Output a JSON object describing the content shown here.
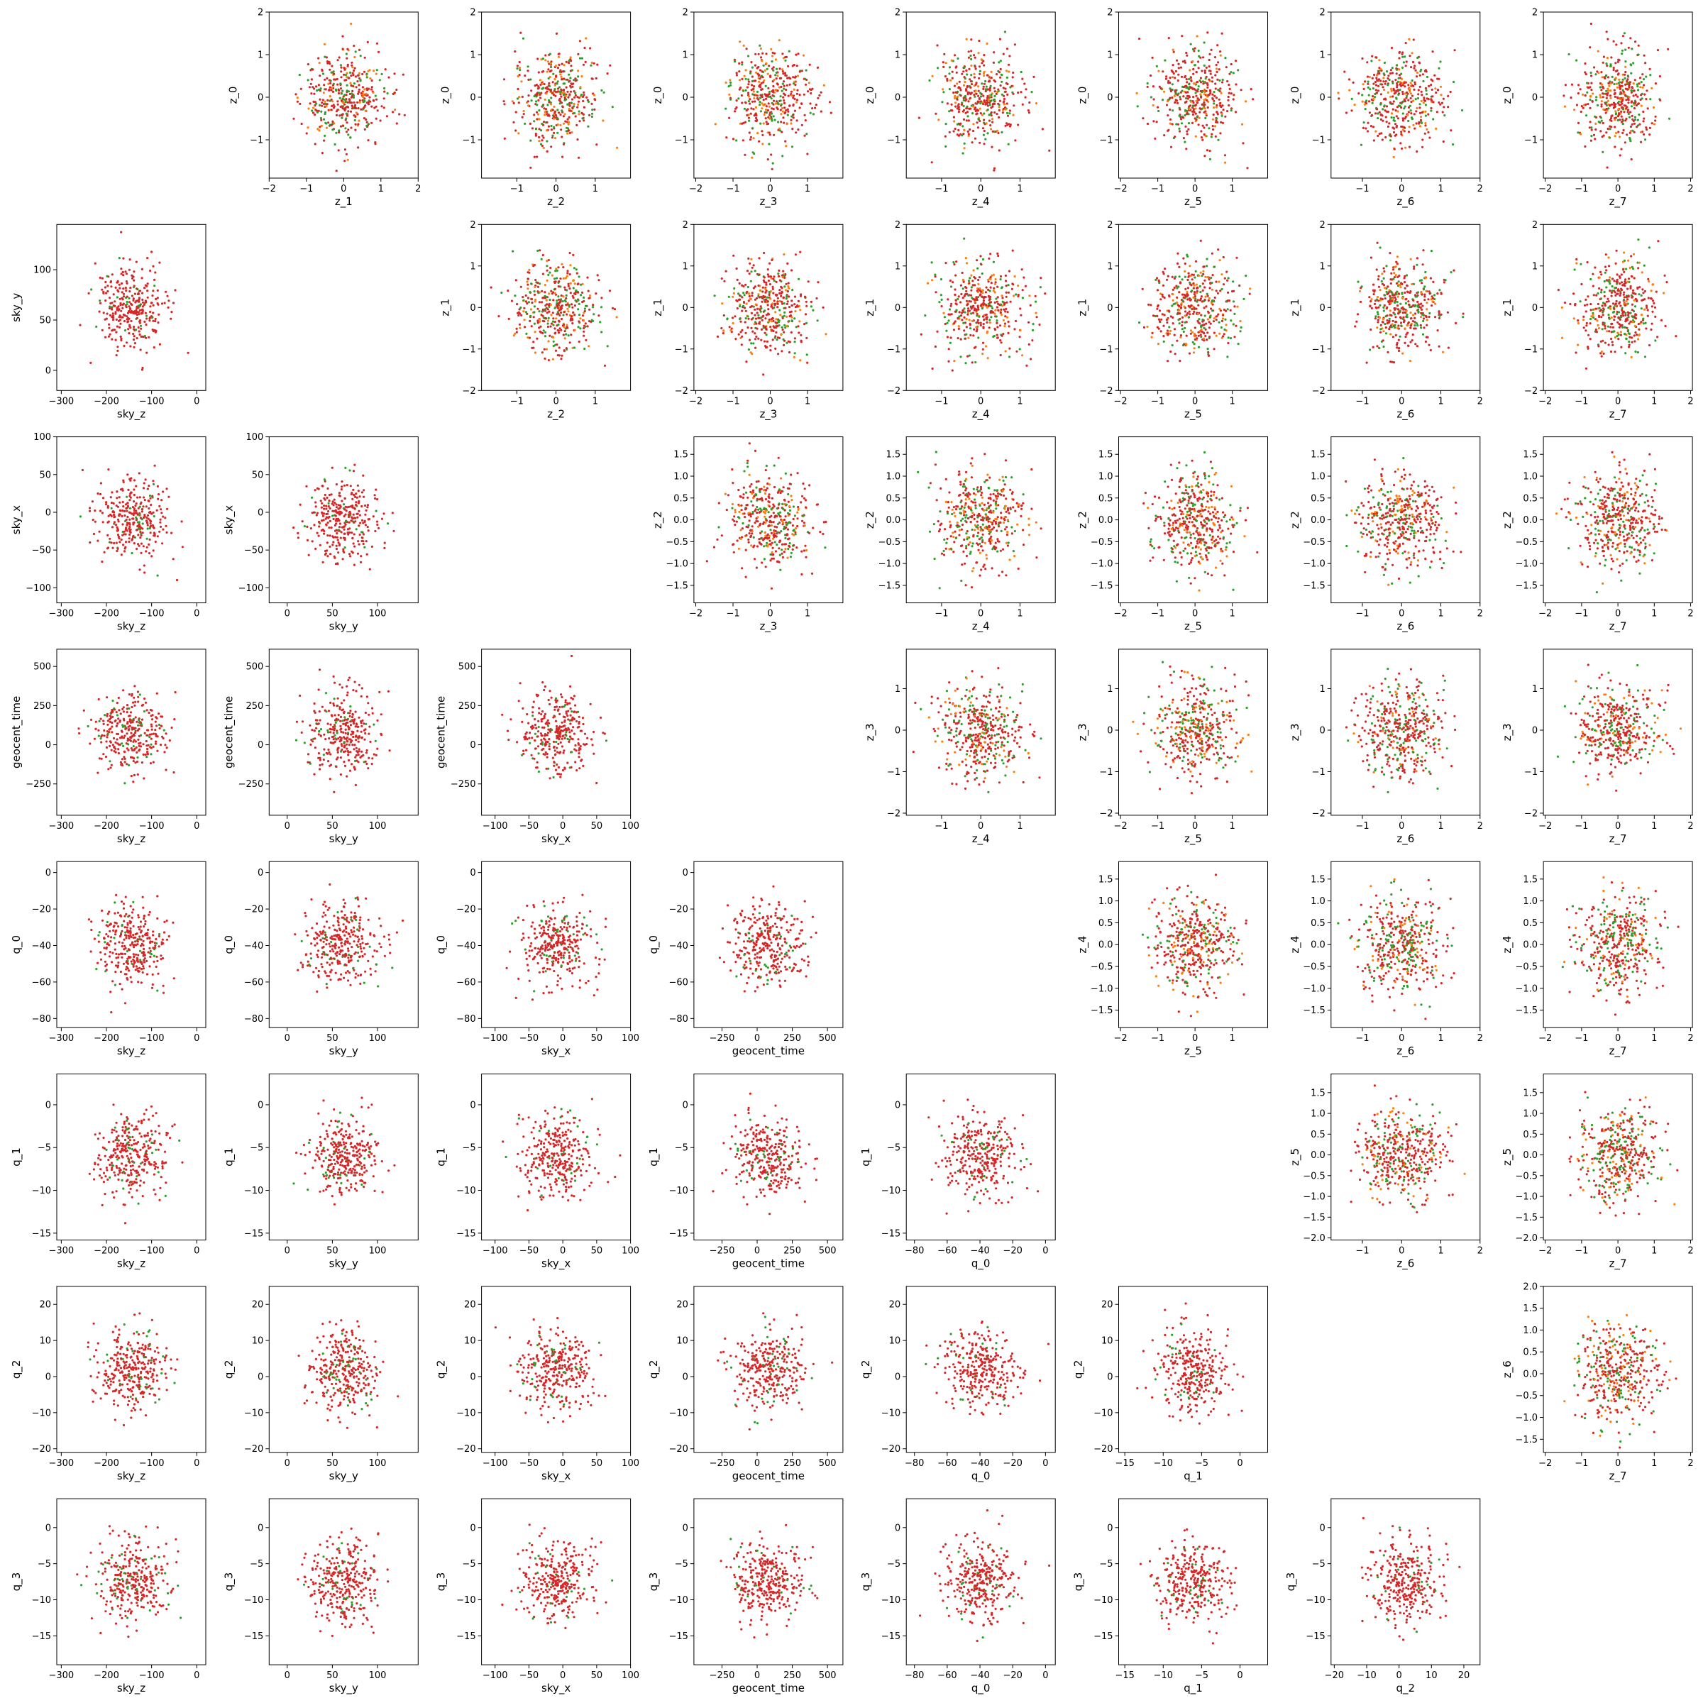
{
  "chart_data": {
    "type": "scatter",
    "layout": "corner-pair-grid",
    "rows": 8,
    "columns": 8,
    "point_colors": [
      "#d62728",
      "#2ca02c",
      "#ff7f0e"
    ],
    "grid": false,
    "legend": "none",
    "ranges": {
      "z_0": [
        -1.9,
        2.0
      ],
      "z_1": [
        -2.0,
        2.0
      ],
      "z_2": [
        -1.9,
        1.9
      ],
      "z_3": [
        -2.05,
        1.95
      ],
      "z_4": [
        -1.9,
        1.9
      ],
      "z_5": [
        -2.05,
        1.95
      ],
      "z_6": [
        -1.8,
        2.0
      ],
      "z_7": [
        -2.05,
        2.05
      ],
      "sky_z": [
        -310,
        20
      ],
      "sky_y": [
        -20,
        145
      ],
      "sky_x": [
        -120,
        100
      ],
      "geocent_time": [
        -450,
        610
      ],
      "q_0": [
        -85,
        6
      ],
      "q_1": [
        -15.8,
        3.6
      ],
      "q_2": [
        -21,
        25
      ],
      "q_3": [
        -19,
        4
      ]
    },
    "ticks": {
      "z_0": [
        -1,
        0,
        1,
        2
      ],
      "z_1": [
        -2,
        -1,
        0,
        1,
        2
      ],
      "z_2": [
        -1,
        0,
        1
      ],
      "z_3": [
        -2,
        -1,
        0,
        1
      ],
      "z_4": [
        -1,
        0,
        1
      ],
      "z_5": [
        -2,
        -1,
        0,
        1
      ],
      "z_6": [
        -1,
        0,
        1,
        2
      ],
      "z_7": [
        -2,
        -1,
        0,
        1,
        2
      ],
      "sky_z": [
        -300,
        -200,
        -100,
        0
      ],
      "sky_y": [
        0,
        50,
        100
      ],
      "sky_x": [
        -100,
        -50,
        0,
        50,
        100
      ],
      "geocent_time": [
        -250,
        0,
        250,
        500
      ],
      "q_0": [
        -80,
        -60,
        -40,
        -20,
        0
      ],
      "q_1": [
        -15,
        -10,
        -5,
        0
      ],
      "q_2": [
        -20,
        -10,
        0,
        10,
        20
      ],
      "q_3": [
        -15,
        -10,
        -5,
        0
      ]
    },
    "y_ranges": {
      "r0": [
        -1.9,
        2.0
      ],
      "r1": [
        -2.0,
        2.0
      ],
      "r2": [
        -1.9,
        1.9
      ],
      "r3": [
        -2.05,
        1.95
      ],
      "r4": [
        -1.9,
        1.9
      ],
      "r5": [
        -2.05,
        1.95
      ],
      "r6": [
        -1.8,
        2.0
      ]
    },
    "y_ticks": {
      "r0": [
        -1,
        0,
        1,
        2
      ],
      "r1": [
        -2,
        -1,
        0,
        1,
        2
      ],
      "r2": [
        -1.5,
        -1.0,
        -0.5,
        0.0,
        0.5,
        1.0,
        1.5
      ],
      "r3": [
        -2,
        -1,
        0,
        1
      ],
      "r4": [
        -1.5,
        -1.0,
        -0.5,
        0.0,
        0.5,
        1.0,
        1.5
      ],
      "r5": [
        -2.0,
        -1.5,
        -1.0,
        -0.5,
        0.0,
        0.5,
        1.0,
        1.5
      ],
      "r6": [
        -1.5,
        -1.0,
        -0.5,
        0.0,
        0.5,
        1.0,
        1.5,
        2.0
      ]
    },
    "y_tick_decimals": {
      "r2": 1,
      "r4": 1,
      "r5": 1,
      "r6": 1
    },
    "panels": [
      {
        "row": 0,
        "col": 1,
        "x": "z_1",
        "y": "z_0"
      },
      {
        "row": 0,
        "col": 2,
        "x": "z_2",
        "y": "z_0"
      },
      {
        "row": 0,
        "col": 3,
        "x": "z_3",
        "y": "z_0"
      },
      {
        "row": 0,
        "col": 4,
        "x": "z_4",
        "y": "z_0"
      },
      {
        "row": 0,
        "col": 5,
        "x": "z_5",
        "y": "z_0"
      },
      {
        "row": 0,
        "col": 6,
        "x": "z_6",
        "y": "z_0"
      },
      {
        "row": 0,
        "col": 7,
        "x": "z_7",
        "y": "z_0"
      },
      {
        "row": 1,
        "col": 2,
        "x": "z_2",
        "y": "z_1"
      },
      {
        "row": 1,
        "col": 3,
        "x": "z_3",
        "y": "z_1"
      },
      {
        "row": 1,
        "col": 4,
        "x": "z_4",
        "y": "z_1"
      },
      {
        "row": 1,
        "col": 5,
        "x": "z_5",
        "y": "z_1"
      },
      {
        "row": 1,
        "col": 6,
        "x": "z_6",
        "y": "z_1"
      },
      {
        "row": 1,
        "col": 7,
        "x": "z_7",
        "y": "z_1"
      },
      {
        "row": 2,
        "col": 3,
        "x": "z_3",
        "y": "z_2"
      },
      {
        "row": 2,
        "col": 4,
        "x": "z_4",
        "y": "z_2"
      },
      {
        "row": 2,
        "col": 5,
        "x": "z_5",
        "y": "z_2"
      },
      {
        "row": 2,
        "col": 6,
        "x": "z_6",
        "y": "z_2"
      },
      {
        "row": 2,
        "col": 7,
        "x": "z_7",
        "y": "z_2"
      },
      {
        "row": 3,
        "col": 4,
        "x": "z_4",
        "y": "z_3"
      },
      {
        "row": 3,
        "col": 5,
        "x": "z_5",
        "y": "z_3"
      },
      {
        "row": 3,
        "col": 6,
        "x": "z_6",
        "y": "z_3"
      },
      {
        "row": 3,
        "col": 7,
        "x": "z_7",
        "y": "z_3"
      },
      {
        "row": 4,
        "col": 5,
        "x": "z_5",
        "y": "z_4"
      },
      {
        "row": 4,
        "col": 6,
        "x": "z_6",
        "y": "z_4"
      },
      {
        "row": 4,
        "col": 7,
        "x": "z_7",
        "y": "z_4"
      },
      {
        "row": 5,
        "col": 6,
        "x": "z_6",
        "y": "z_5"
      },
      {
        "row": 5,
        "col": 7,
        "x": "z_7",
        "y": "z_5"
      },
      {
        "row": 6,
        "col": 7,
        "x": "z_7",
        "y": "z_6"
      },
      {
        "row": 1,
        "col": 0,
        "x": "sky_z",
        "y": "sky_y"
      },
      {
        "row": 2,
        "col": 0,
        "x": "sky_z",
        "y": "sky_x"
      },
      {
        "row": 2,
        "col": 1,
        "x": "sky_y",
        "y": "sky_x"
      },
      {
        "row": 3,
        "col": 0,
        "x": "sky_z",
        "y": "geocent_time"
      },
      {
        "row": 3,
        "col": 1,
        "x": "sky_y",
        "y": "geocent_time"
      },
      {
        "row": 3,
        "col": 2,
        "x": "sky_x",
        "y": "geocent_time"
      },
      {
        "row": 4,
        "col": 0,
        "x": "sky_z",
        "y": "q_0"
      },
      {
        "row": 4,
        "col": 1,
        "x": "sky_y",
        "y": "q_0"
      },
      {
        "row": 4,
        "col": 2,
        "x": "sky_x",
        "y": "q_0"
      },
      {
        "row": 4,
        "col": 3,
        "x": "geocent_time",
        "y": "q_0"
      },
      {
        "row": 5,
        "col": 0,
        "x": "sky_z",
        "y": "q_1"
      },
      {
        "row": 5,
        "col": 1,
        "x": "sky_y",
        "y": "q_1"
      },
      {
        "row": 5,
        "col": 2,
        "x": "sky_x",
        "y": "q_1"
      },
      {
        "row": 5,
        "col": 3,
        "x": "geocent_time",
        "y": "q_1"
      },
      {
        "row": 5,
        "col": 4,
        "x": "q_0",
        "y": "q_1"
      },
      {
        "row": 6,
        "col": 0,
        "x": "sky_z",
        "y": "q_2"
      },
      {
        "row": 6,
        "col": 1,
        "x": "sky_y",
        "y": "q_2"
      },
      {
        "row": 6,
        "col": 2,
        "x": "sky_x",
        "y": "q_2"
      },
      {
        "row": 6,
        "col": 3,
        "x": "geocent_time",
        "y": "q_2"
      },
      {
        "row": 6,
        "col": 4,
        "x": "q_0",
        "y": "q_2"
      },
      {
        "row": 6,
        "col": 5,
        "x": "q_1",
        "y": "q_2"
      },
      {
        "row": 7,
        "col": 0,
        "x": "sky_z",
        "y": "q_3"
      },
      {
        "row": 7,
        "col": 1,
        "x": "sky_y",
        "y": "q_3"
      },
      {
        "row": 7,
        "col": 2,
        "x": "sky_x",
        "y": "q_3"
      },
      {
        "row": 7,
        "col": 3,
        "x": "geocent_time",
        "y": "q_3"
      },
      {
        "row": 7,
        "col": 4,
        "x": "q_0",
        "y": "q_3"
      },
      {
        "row": 7,
        "col": 5,
        "x": "q_1",
        "y": "q_3"
      },
      {
        "row": 7,
        "col": 6,
        "x": "q_2",
        "y": "q_3"
      }
    ]
  }
}
